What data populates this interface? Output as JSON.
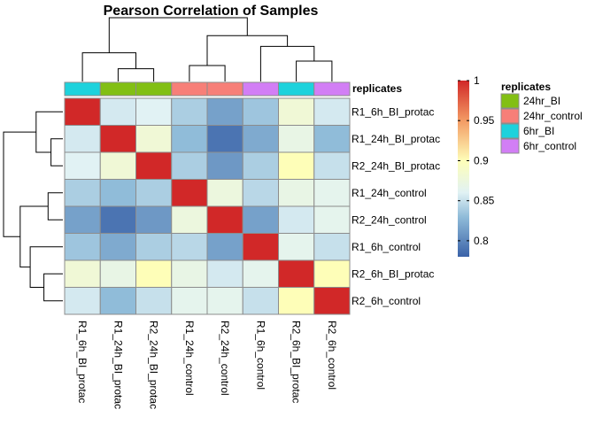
{
  "chart_data": {
    "type": "heatmap",
    "title": "Pearson Correlation of Samples",
    "rows": [
      "R1_6h_BI_protac",
      "R1_24h_BI_protac",
      "R2_24h_BI_protac",
      "R1_24h_control",
      "R2_24h_control",
      "R1_6h_control",
      "R2_6h_BI_protac",
      "R2_6h_control"
    ],
    "columns": [
      "R1_6h_BI_protac",
      "R1_24h_BI_protac",
      "R2_24h_BI_protac",
      "R1_24h_control",
      "R2_24h_control",
      "R1_6h_control",
      "R2_6h_BI_protac",
      "R2_6h_control"
    ],
    "values": [
      [
        1.0,
        0.855,
        0.86,
        0.84,
        0.815,
        0.835,
        0.88,
        0.855
      ],
      [
        0.855,
        1.0,
        0.88,
        0.83,
        0.79,
        0.82,
        0.87,
        0.83
      ],
      [
        0.86,
        0.88,
        1.0,
        0.84,
        0.81,
        0.84,
        0.9,
        0.85
      ],
      [
        0.84,
        0.83,
        0.84,
        1.0,
        0.875,
        0.845,
        0.87,
        0.865
      ],
      [
        0.815,
        0.79,
        0.81,
        0.875,
        1.0,
        0.815,
        0.855,
        0.865
      ],
      [
        0.835,
        0.82,
        0.84,
        0.845,
        0.815,
        1.0,
        0.865,
        0.85
      ],
      [
        0.88,
        0.87,
        0.9,
        0.87,
        0.855,
        0.865,
        1.0,
        0.9
      ],
      [
        0.855,
        0.83,
        0.85,
        0.865,
        0.865,
        0.85,
        0.9,
        1.0
      ]
    ],
    "color_scale": {
      "min": 0.78,
      "max": 1.0,
      "stops": [
        {
          "value": 0.78,
          "color": "#3a62a8"
        },
        {
          "value": 0.83,
          "color": "#90bcd9"
        },
        {
          "value": 0.86,
          "color": "#e1f2f4"
        },
        {
          "value": 0.9,
          "color": "#fefeb8"
        },
        {
          "value": 0.95,
          "color": "#f39b64"
        },
        {
          "value": 1.0,
          "color": "#d12828"
        }
      ],
      "ticks": [
        "0.8",
        "0.85",
        "0.9",
        "0.95",
        "1"
      ]
    },
    "annotation": {
      "title": "replicates",
      "column_groups": [
        "6hr_BI",
        "24hr_BI",
        "24hr_BI",
        "24hr_control",
        "24hr_control",
        "6hr_control",
        "6hr_BI",
        "6hr_control"
      ],
      "legend": [
        {
          "label": "24hr_BI",
          "color": "#82bf14"
        },
        {
          "label": "24hr_control",
          "color": "#f77f78"
        },
        {
          "label": "6hr_BI",
          "color": "#1ed2dc"
        },
        {
          "label": "6hr_control",
          "color": "#d27ef5"
        }
      ]
    },
    "dendrogram": {
      "merge_order": [
        [
          1,
          2
        ],
        [
          0,
          "A"
        ],
        [
          3,
          4
        ],
        [
          6,
          7
        ],
        [
          "D",
          5
        ],
        [
          "C",
          "E"
        ],
        [
          "B",
          "F"
        ]
      ],
      "merge_heights": [
        0.2,
        0.45,
        0.25,
        0.32,
        0.55,
        0.72,
        1.0
      ]
    }
  }
}
